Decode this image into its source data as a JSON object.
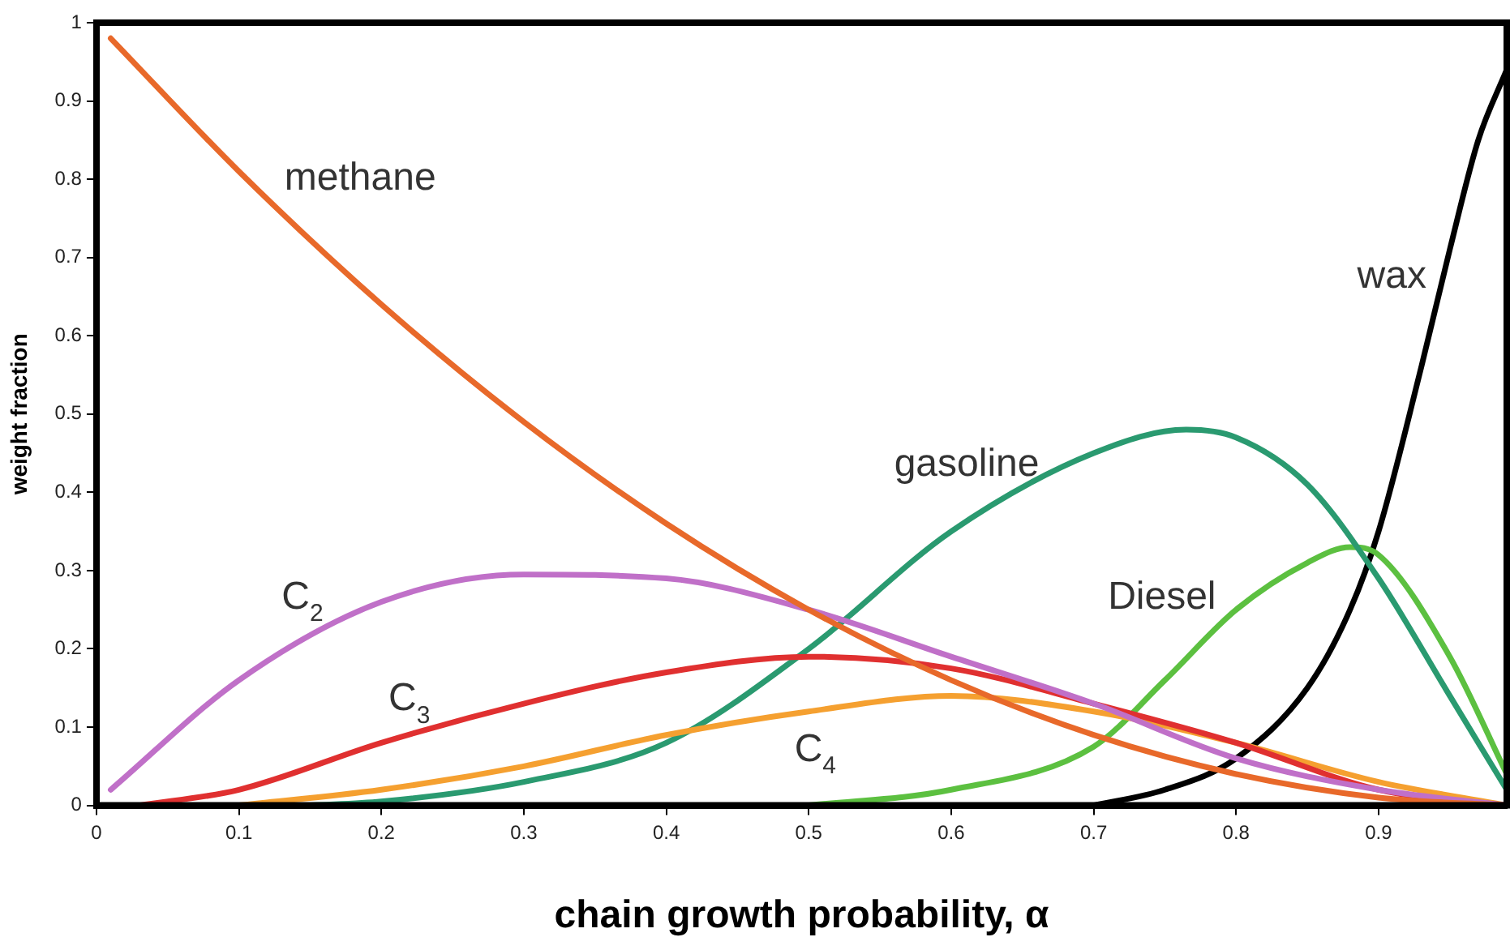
{
  "chart_data": {
    "type": "line",
    "xlabel": "chain growth probability, α",
    "ylabel": "weight fraction",
    "xlim": [
      0,
      0.99
    ],
    "ylim": [
      0,
      1
    ],
    "xticks": [
      0,
      0.1,
      0.2,
      0.3,
      0.4,
      0.5,
      0.6,
      0.7,
      0.8,
      0.9
    ],
    "yticks": [
      0,
      0.1,
      0.2,
      0.3,
      0.4,
      0.5,
      0.6,
      0.7,
      0.8,
      0.9,
      1
    ],
    "grid": false,
    "legend": false,
    "marker": "none",
    "line_style": "solid",
    "series": [
      {
        "name": "methane",
        "color": "#e8692a",
        "x": [
          0.01,
          0.1,
          0.2,
          0.3,
          0.4,
          0.5,
          0.6,
          0.7,
          0.8,
          0.9,
          0.99
        ],
        "values": [
          0.98,
          0.81,
          0.64,
          0.49,
          0.36,
          0.25,
          0.16,
          0.09,
          0.04,
          0.01,
          0
        ]
      },
      {
        "name": "C$_{2}$",
        "color": "#c070c8",
        "x": [
          0.01,
          0.1,
          0.2,
          0.3,
          0.4,
          0.5,
          0.6,
          0.7,
          0.8,
          0.9,
          0.99
        ],
        "values": [
          0.02,
          0.16,
          0.26,
          0.295,
          0.29,
          0.25,
          0.19,
          0.13,
          0.06,
          0.02,
          0
        ]
      },
      {
        "name": "C$_{3}$",
        "color": "#e03030",
        "x": [
          0.03,
          0.1,
          0.2,
          0.3,
          0.4,
          0.5,
          0.6,
          0.7,
          0.8,
          0.9,
          0.99
        ],
        "values": [
          0,
          0.02,
          0.08,
          0.13,
          0.17,
          0.19,
          0.175,
          0.13,
          0.08,
          0.02,
          0
        ]
      },
      {
        "name": "C$_{4}$",
        "color": "#f5a030",
        "x": [
          0.1,
          0.2,
          0.3,
          0.4,
          0.5,
          0.6,
          0.7,
          0.8,
          0.9,
          0.99
        ],
        "values": [
          0,
          0.02,
          0.05,
          0.09,
          0.12,
          0.14,
          0.12,
          0.08,
          0.03,
          0
        ]
      },
      {
        "name": "gasoline",
        "color": "#2a9a70",
        "x": [
          0.15,
          0.2,
          0.3,
          0.4,
          0.5,
          0.6,
          0.7,
          0.765,
          0.8,
          0.85,
          0.9,
          0.95,
          0.99
        ],
        "values": [
          0,
          0.005,
          0.03,
          0.08,
          0.2,
          0.35,
          0.45,
          0.48,
          0.47,
          0.41,
          0.29,
          0.14,
          0.02
        ]
      },
      {
        "name": "Diesel",
        "color": "#5cc040",
        "x": [
          0.5,
          0.6,
          0.7,
          0.75,
          0.8,
          0.85,
          0.88,
          0.9,
          0.95,
          0.99
        ],
        "values": [
          0,
          0.02,
          0.075,
          0.16,
          0.25,
          0.31,
          0.33,
          0.32,
          0.19,
          0.04
        ]
      },
      {
        "name": "wax",
        "color": "#000000",
        "x": [
          0.7,
          0.75,
          0.8,
          0.85,
          0.88,
          0.9,
          0.93,
          0.95,
          0.97,
          0.99
        ],
        "values": [
          0,
          0.02,
          0.06,
          0.15,
          0.25,
          0.35,
          0.56,
          0.71,
          0.85,
          0.94
        ]
      }
    ]
  }
}
